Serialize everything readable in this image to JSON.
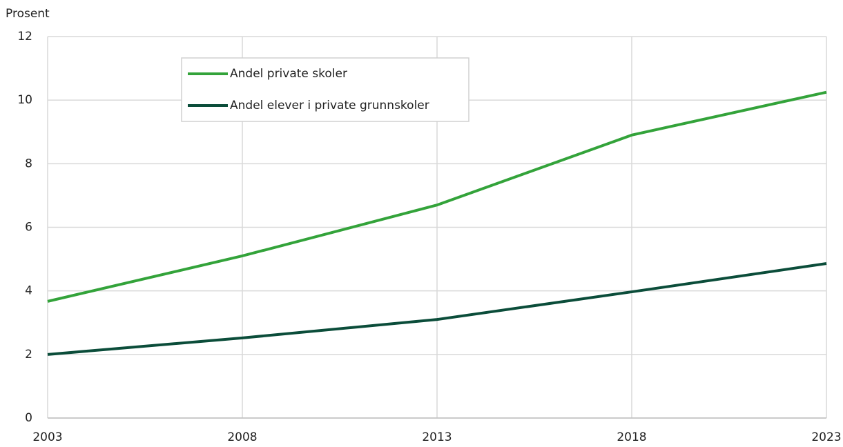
{
  "chart_data": {
    "type": "line",
    "y_axis_label": "Prosent",
    "x": [
      2003,
      2008,
      2013,
      2018,
      2023
    ],
    "series": [
      {
        "name": "Andel private skoler",
        "color": "#33a33a",
        "values": [
          3.67,
          5.1,
          6.7,
          8.9,
          10.25
        ]
      },
      {
        "name": "Andel elever i private grunnskoler",
        "color": "#0b4d3a",
        "values": [
          2.0,
          2.52,
          3.1,
          3.97,
          4.86
        ]
      }
    ],
    "xlim": [
      2003,
      2023
    ],
    "xticks": [
      2003,
      2008,
      2013,
      2018,
      2023
    ],
    "ylim": [
      0,
      12
    ],
    "yticks": [
      0,
      2,
      4,
      6,
      8,
      10,
      12
    ],
    "grid": true,
    "legend": "upper left"
  }
}
